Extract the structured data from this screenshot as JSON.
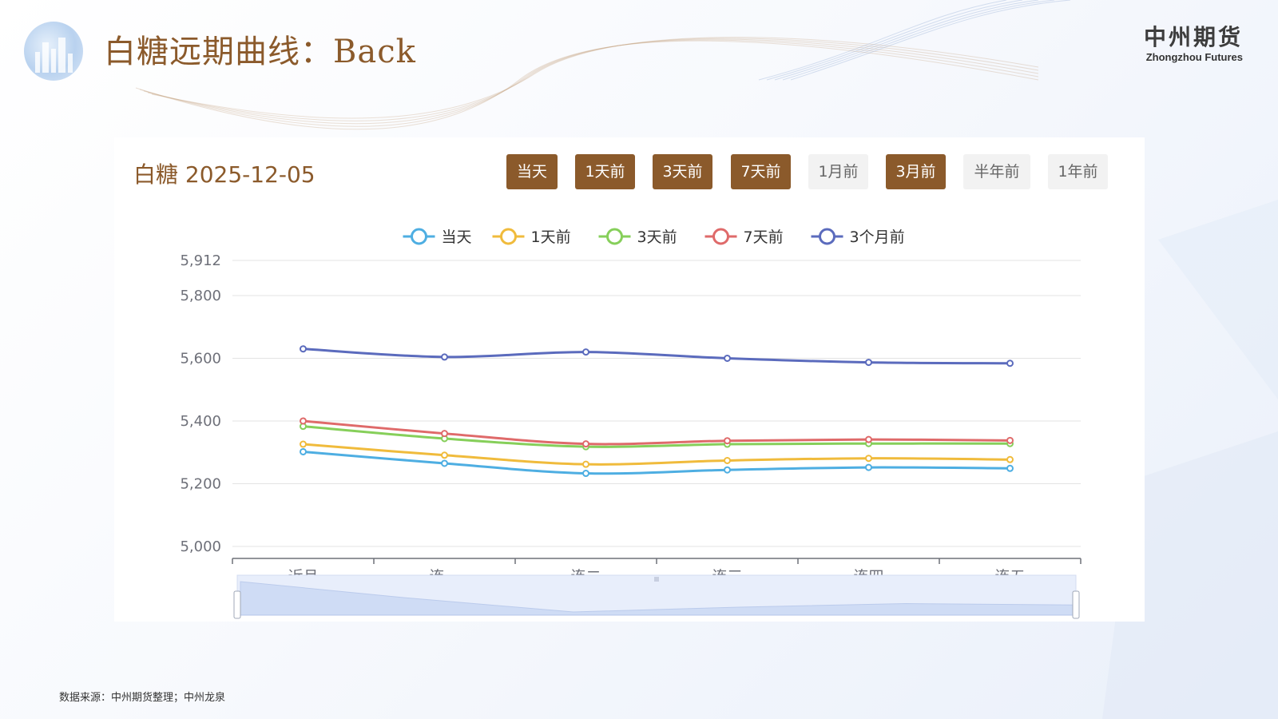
{
  "page": {
    "title": "白糖远期曲线：Back",
    "brand_cn": "中州期货",
    "brand_en": "Zhongzhou Futures",
    "source": "数据来源：中州期货整理；中州龙泉"
  },
  "heading": "白糖 2025-12-05",
  "buttons": [
    {
      "label": "当天",
      "active": true
    },
    {
      "label": "1天前",
      "active": true
    },
    {
      "label": "3天前",
      "active": true
    },
    {
      "label": "7天前",
      "active": true
    },
    {
      "label": "1月前",
      "active": false
    },
    {
      "label": "3月前",
      "active": true
    },
    {
      "label": "半年前",
      "active": false
    },
    {
      "label": "1年前",
      "active": false
    }
  ],
  "colors": {
    "accent": "#8b5a2b",
    "inactive_button": "#f2f2f2"
  },
  "chart_data": {
    "type": "line",
    "categories": [
      "近月",
      "连一",
      "连二",
      "连三",
      "连四",
      "连五"
    ],
    "series": [
      {
        "name": "当天",
        "color": "#4eaee2",
        "values": [
          5302,
          5265,
          5233,
          5244,
          5252,
          5249
        ]
      },
      {
        "name": "1天前",
        "color": "#f0bb3c",
        "values": [
          5326,
          5291,
          5262,
          5274,
          5281,
          5277
        ]
      },
      {
        "name": "3天前",
        "color": "#86cf5a",
        "values": [
          5383,
          5344,
          5318,
          5326,
          5328,
          5328
        ]
      },
      {
        "name": "7天前",
        "color": "#df6a6a",
        "values": [
          5400,
          5360,
          5327,
          5337,
          5341,
          5338
        ]
      },
      {
        "name": "3个月前",
        "color": "#5b6bbd",
        "values": [
          5630,
          5604,
          5620,
          5600,
          5587,
          5584
        ]
      }
    ],
    "yticks": [
      5000,
      5200,
      5400,
      5600,
      5800,
      5912
    ],
    "ylim": [
      5000,
      5912
    ],
    "legend": "top-center",
    "grid": true,
    "data_zoom_slider": true
  }
}
